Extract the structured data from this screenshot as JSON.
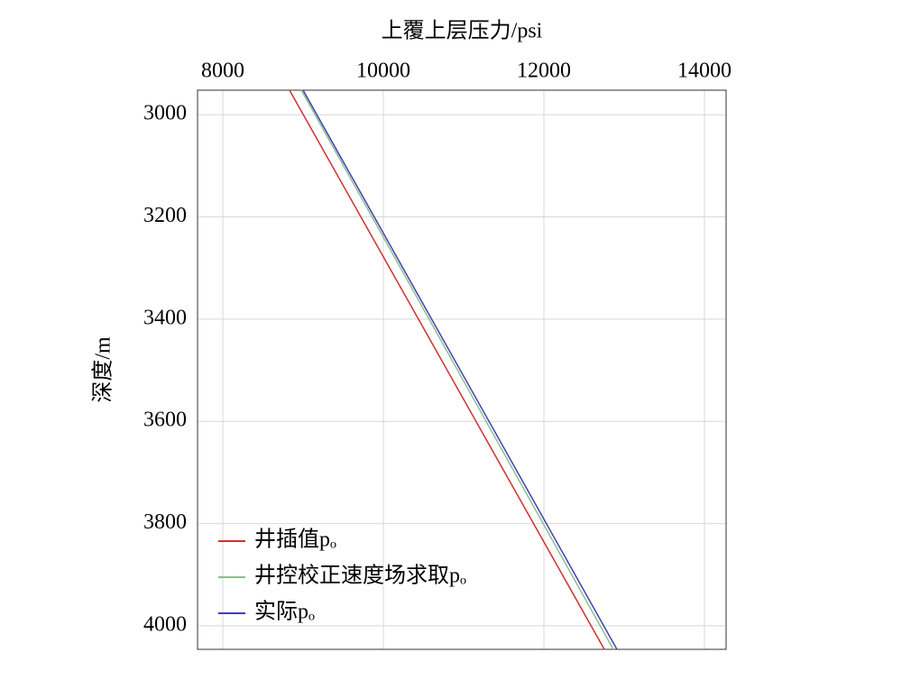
{
  "chart_data": {
    "type": "line",
    "title": "上覆上层压力/psi",
    "y_label": "深度/m",
    "x": [
      2952,
      3500,
      4046
    ],
    "series": [
      {
        "name": "井插值pₒ",
        "color": "#d03030",
        "values": [
          8831,
          10796,
          12753
        ]
      },
      {
        "name": "井控校正速度场求取pₒ",
        "color": "#8cc08c",
        "values": [
          8978,
          10925,
          12865
        ]
      },
      {
        "name": "实际pₒ",
        "color": "#4040b0",
        "values": [
          9000,
          10959,
          12910
        ]
      }
    ],
    "xlim": [
      7685,
      14270
    ],
    "xticks": [
      8000,
      10000,
      12000,
      14000
    ],
    "ylim": [
      2952,
      4046
    ],
    "yticks": [
      3000,
      3200,
      3400,
      3600,
      3800,
      4000
    ],
    "y_reversed": true,
    "grid": true,
    "legend": "lower left"
  }
}
